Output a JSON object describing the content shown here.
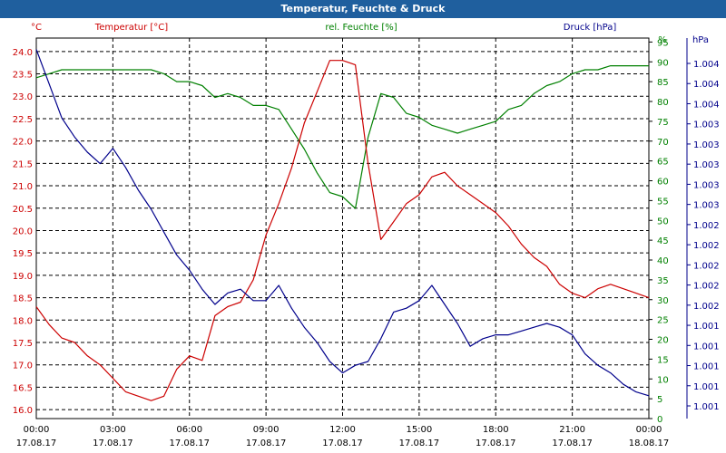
{
  "chart_data": {
    "type": "line",
    "title": "Temperatur, Feuchte & Druck",
    "x": [
      "00:00",
      "00:30",
      "01:00",
      "01:30",
      "02:00",
      "02:30",
      "03:00",
      "03:30",
      "04:00",
      "04:30",
      "05:00",
      "05:30",
      "06:00",
      "06:30",
      "07:00",
      "07:30",
      "08:00",
      "08:30",
      "09:00",
      "09:30",
      "10:00",
      "10:30",
      "11:00",
      "11:30",
      "12:00",
      "12:30",
      "13:00",
      "13:30",
      "14:00",
      "14:30",
      "15:00",
      "15:30",
      "16:00",
      "16:30",
      "17:00",
      "17:30",
      "18:00",
      "18:30",
      "19:00",
      "19:30",
      "20:00",
      "20:30",
      "21:00",
      "21:30",
      "22:00",
      "22:30",
      "23:00",
      "23:30",
      "24:00"
    ],
    "x_ticks": [
      {
        "time": "00:00",
        "date": "17.08.17"
      },
      {
        "time": "03:00",
        "date": "17.08.17"
      },
      {
        "time": "06:00",
        "date": "17.08.17"
      },
      {
        "time": "09:00",
        "date": "17.08.17"
      },
      {
        "time": "12:00",
        "date": "17.08.17"
      },
      {
        "time": "15:00",
        "date": "17.08.17"
      },
      {
        "time": "18:00",
        "date": "17.08.17"
      },
      {
        "time": "21:00",
        "date": "17.08.17"
      },
      {
        "time": "00:00",
        "date": "18.08.17"
      }
    ],
    "grid": true,
    "axes": {
      "left": {
        "label": "Temperatur [°C]",
        "unit": "°C",
        "ylim": [
          15.8,
          24.3
        ],
        "ticks": [
          "16.0",
          "16.5",
          "17.0",
          "17.5",
          "18.0",
          "18.5",
          "19.0",
          "19.5",
          "20.0",
          "20.5",
          "21.0",
          "21.5",
          "22.0",
          "22.5",
          "23.0",
          "23.5",
          "24.0"
        ],
        "color": "#cc0000"
      },
      "right1": {
        "label": "rel. Feuchte [%]",
        "unit": "%",
        "ylim": [
          0,
          96
        ],
        "ticks": [
          "0",
          "5",
          "10",
          "15",
          "20",
          "25",
          "30",
          "35",
          "40",
          "45",
          "50",
          "55",
          "60",
          "65",
          "70",
          "75",
          "80",
          "85",
          "90",
          "95"
        ],
        "color": "#008000"
      },
      "right2": {
        "label": "Druck [hPa]",
        "unit": "hPa",
        "ticks": [
          "1.004",
          "1.004",
          "1.004",
          "1.003",
          "1.003",
          "1.003",
          "1.003",
          "1.003",
          "1.002",
          "1.002",
          "1.002",
          "1.002",
          "1.002",
          "1.001",
          "1.001",
          "1.001",
          "1.001",
          "1.001"
        ],
        "color": "#00008b"
      }
    },
    "series": [
      {
        "name": "Temperatur [°C]",
        "axis": "left",
        "color": "#cc0000",
        "values": [
          18.3,
          17.9,
          17.6,
          17.5,
          17.2,
          17.0,
          16.7,
          16.4,
          16.3,
          16.2,
          16.3,
          16.9,
          17.2,
          17.1,
          18.1,
          18.3,
          18.4,
          18.9,
          19.9,
          20.6,
          21.4,
          22.4,
          23.1,
          23.8,
          23.8,
          23.7,
          21.5,
          19.8,
          20.2,
          20.6,
          20.8,
          21.2,
          21.3,
          21.0,
          20.8,
          20.6,
          20.4,
          20.1,
          19.7,
          19.4,
          19.2,
          18.8,
          18.6,
          18.5,
          18.7,
          18.8,
          18.7,
          18.6,
          18.5
        ]
      },
      {
        "name": "rel. Feuchte [%]",
        "axis": "right1",
        "color": "#008000",
        "values": [
          86,
          87,
          88,
          88,
          88,
          88,
          88,
          88,
          88,
          88,
          87,
          85,
          85,
          84,
          81,
          82,
          81,
          79,
          79,
          78,
          73,
          68,
          62,
          57,
          56,
          53,
          71,
          82,
          81,
          77,
          76,
          74,
          73,
          72,
          73,
          74,
          75,
          78,
          79,
          82,
          84,
          85,
          87,
          88,
          88,
          89,
          89,
          89,
          89
        ]
      }
    ],
    "pressure_series": {
      "name": "Druck [hPa]",
      "axis": "right2",
      "color": "#00008b",
      "note": "plotted against the Druck axis; tick labels are rounded so underlying values are not readable",
      "values_relative": [
        0.97,
        0.88,
        0.79,
        0.74,
        0.7,
        0.67,
        0.71,
        0.66,
        0.6,
        0.55,
        0.49,
        0.43,
        0.39,
        0.34,
        0.3,
        0.33,
        0.34,
        0.31,
        0.31,
        0.35,
        0.29,
        0.24,
        0.2,
        0.15,
        0.12,
        0.14,
        0.15,
        0.21,
        0.28,
        0.29,
        0.31,
        0.35,
        0.3,
        0.25,
        0.19,
        0.21,
        0.22,
        0.22,
        0.23,
        0.24,
        0.25,
        0.24,
        0.22,
        0.17,
        0.14,
        0.12,
        0.09,
        0.07,
        0.06
      ]
    }
  }
}
